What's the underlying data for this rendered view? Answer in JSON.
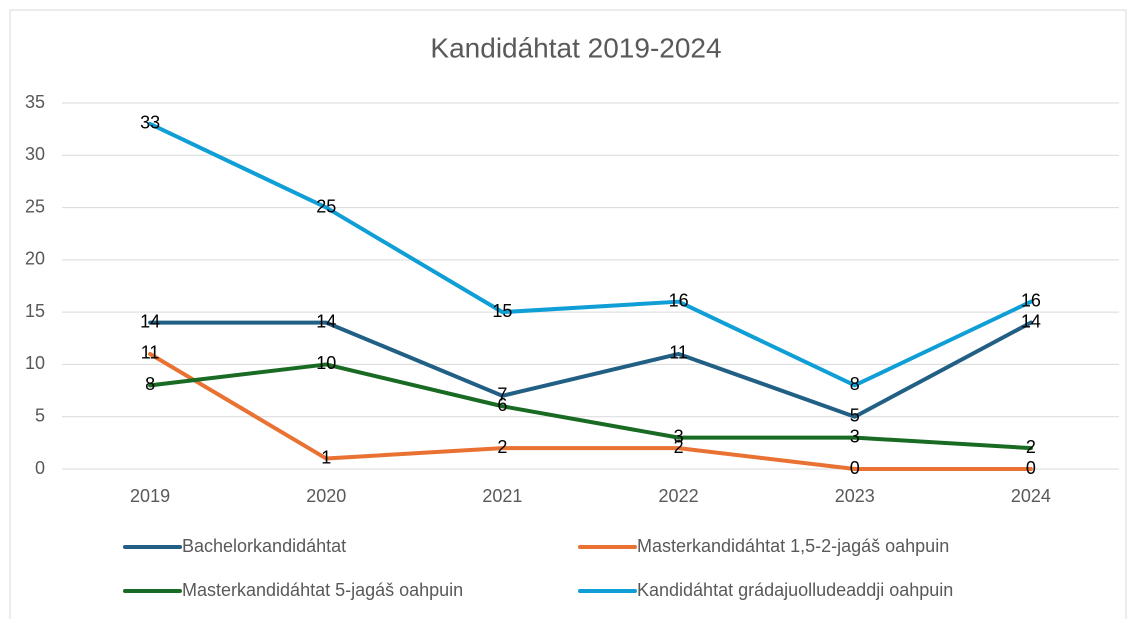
{
  "chart_data": {
    "type": "line",
    "title": "Kandidáhtat 2019-2024",
    "categories": [
      "2019",
      "2020",
      "2021",
      "2022",
      "2023",
      "2024"
    ],
    "series": [
      {
        "name": "Bachelorkandidáhtat",
        "color": "#215f85",
        "values": [
          14,
          14,
          7,
          11,
          5,
          14
        ]
      },
      {
        "name": "Masterkandidáhtat 1,5-2-jagáš oahpuin",
        "color": "#e97132",
        "values": [
          11,
          1,
          2,
          2,
          0,
          0
        ]
      },
      {
        "name": "Masterkandidáhtat 5-jagáš oahpuin",
        "color": "#196b24",
        "values": [
          8,
          10,
          6,
          3,
          3,
          2
        ]
      },
      {
        "name": "Kandidáhtat grádajuolludeaddji oahpuin",
        "color": "#0f9ed5",
        "values": [
          33,
          25,
          15,
          16,
          8,
          16
        ]
      }
    ],
    "ylim": [
      0,
      35
    ],
    "yticks": [
      0,
      5,
      10,
      15,
      20,
      25,
      30,
      35
    ],
    "grid": true,
    "legend": "bottom",
    "data_labels": true
  }
}
